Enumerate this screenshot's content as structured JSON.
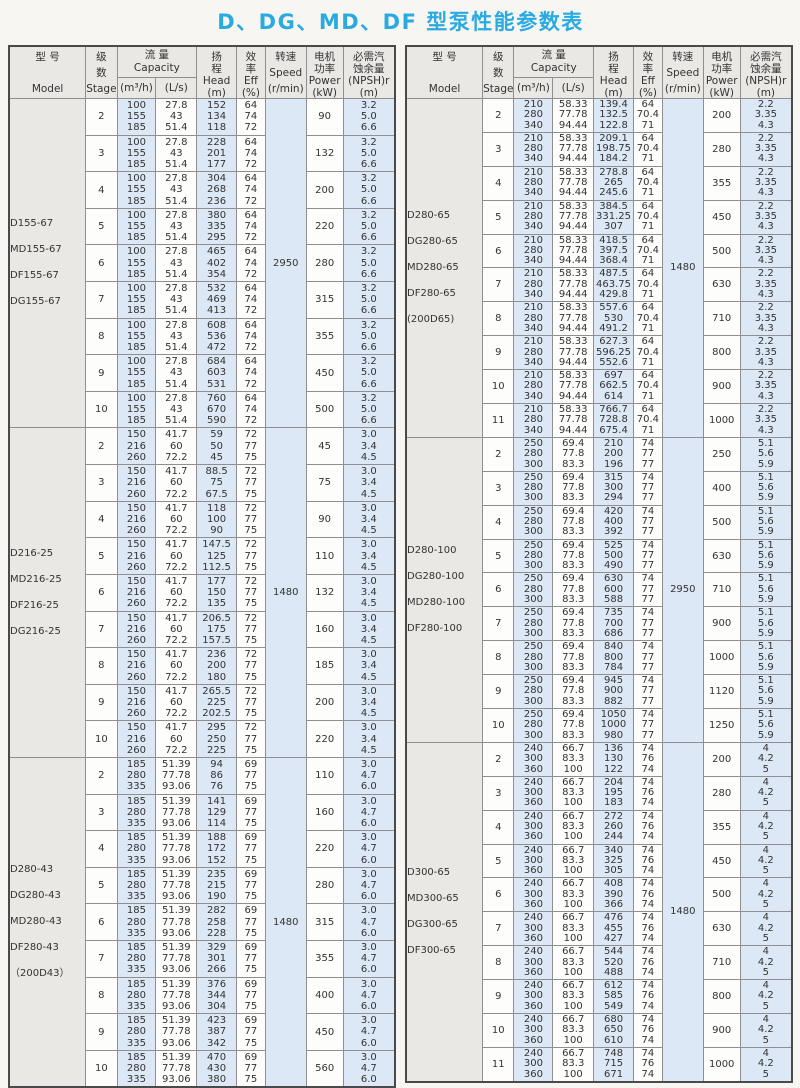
{
  "title": "D、DG、MD、DF 型泵性能参数表",
  "colors": {
    "title_blue": "#29abe2",
    "cell_blue": "#dce8f5",
    "cell_gray": "#eae8e5",
    "inner_border": "#8f8f8f",
    "outer_border": "#4a4a4a"
  },
  "columns": {
    "model": {
      "zh": [
        "型  号"
      ],
      "en": [
        "Model"
      ]
    },
    "stage": {
      "zh": [
        "级",
        "数"
      ],
      "en": [
        "Stage"
      ]
    },
    "capacity": {
      "zh": [
        "流  量"
      ],
      "en": [
        "Capacity"
      ]
    },
    "capacity_units": [
      "(m³/h)",
      "(L/s)"
    ],
    "head": {
      "zh": [
        "扬",
        "程"
      ],
      "en": [
        "Head",
        "(m)"
      ]
    },
    "eff": {
      "zh": [
        "效",
        "率"
      ],
      "en": [
        "Eff",
        "(%)"
      ]
    },
    "speed": {
      "zh": [
        "转速"
      ],
      "en": [
        "Speed",
        "(r/min)"
      ]
    },
    "power": {
      "zh": [
        "电机",
        "功率"
      ],
      "en": [
        "Power",
        "(kW)"
      ]
    },
    "npsh": {
      "zh": [
        "必需汽",
        "蚀余量"
      ],
      "en": [
        "(NPSH)r",
        "(m)"
      ]
    }
  },
  "tables": [
    {
      "id": "left",
      "sections": [
        {
          "models": [
            "D155-67",
            "MD155-67",
            "DF155-67",
            "DG155-67"
          ],
          "flow": [
            [
              "100",
              "27.8"
            ],
            [
              "155",
              "43"
            ],
            [
              "185",
              "51.4"
            ]
          ],
          "eff": [
            "64",
            "74",
            "72"
          ],
          "speed": "2950",
          "npsh": [
            "3.2",
            "5.0",
            "6.6"
          ],
          "stages": [
            {
              "stage": "2",
              "heads": [
                "152",
                "134",
                "118"
              ],
              "power": "90"
            },
            {
              "stage": "3",
              "heads": [
                "228",
                "201",
                "177"
              ],
              "power": "132"
            },
            {
              "stage": "4",
              "heads": [
                "304",
                "268",
                "236"
              ],
              "power": "200"
            },
            {
              "stage": "5",
              "heads": [
                "380",
                "335",
                "295"
              ],
              "power": "220"
            },
            {
              "stage": "6",
              "heads": [
                "465",
                "402",
                "354"
              ],
              "power": "280"
            },
            {
              "stage": "7",
              "heads": [
                "532",
                "469",
                "413"
              ],
              "power": "315"
            },
            {
              "stage": "8",
              "heads": [
                "608",
                "536",
                "472"
              ],
              "power": "355"
            },
            {
              "stage": "9",
              "heads": [
                "684",
                "603",
                "531"
              ],
              "power": "450"
            },
            {
              "stage": "10",
              "heads": [
                "760",
                "670",
                "590"
              ],
              "power": "500"
            }
          ]
        },
        {
          "models": [
            "D216-25",
            "MD216-25",
            "DF216-25",
            "DG216-25"
          ],
          "flow": [
            [
              "150",
              "41.7"
            ],
            [
              "216",
              "60"
            ],
            [
              "260",
              "72.2"
            ]
          ],
          "eff": [
            "72",
            "77",
            "75"
          ],
          "speed": "1480",
          "npsh": [
            "3.0",
            "3.4",
            "4.5"
          ],
          "stages": [
            {
              "stage": "2",
              "heads": [
                "59",
                "50",
                "45"
              ],
              "power": "45"
            },
            {
              "stage": "3",
              "heads": [
                "88.5",
                "75",
                "67.5"
              ],
              "power": "75"
            },
            {
              "stage": "4",
              "heads": [
                "118",
                "100",
                "90"
              ],
              "power": "90"
            },
            {
              "stage": "5",
              "heads": [
                "147.5",
                "125",
                "112.5"
              ],
              "power": "110"
            },
            {
              "stage": "6",
              "heads": [
                "177",
                "150",
                "135"
              ],
              "power": "132"
            },
            {
              "stage": "7",
              "heads": [
                "206.5",
                "175",
                "157.5"
              ],
              "power": "160"
            },
            {
              "stage": "8",
              "heads": [
                "236",
                "200",
                "180"
              ],
              "power": "185"
            },
            {
              "stage": "9",
              "heads": [
                "265.5",
                "225",
                "202.5"
              ],
              "power": "200"
            },
            {
              "stage": "10",
              "heads": [
                "295",
                "250",
                "225"
              ],
              "power": "220"
            }
          ]
        },
        {
          "models": [
            "D280-43",
            "DG280-43",
            "MD280-43",
            "DF280-43",
            "（200D43）"
          ],
          "flow": [
            [
              "185",
              "51.39"
            ],
            [
              "280",
              "77.78"
            ],
            [
              "335",
              "93.06"
            ]
          ],
          "eff": [
            "69",
            "77",
            "75"
          ],
          "speed": "1480",
          "npsh": [
            "3.0",
            "4.7",
            "6.0"
          ],
          "stages": [
            {
              "stage": "2",
              "heads": [
                "94",
                "86",
                "76"
              ],
              "power": "110"
            },
            {
              "stage": "3",
              "heads": [
                "141",
                "129",
                "114"
              ],
              "power": "160"
            },
            {
              "stage": "4",
              "heads": [
                "188",
                "172",
                "152"
              ],
              "power": "220"
            },
            {
              "stage": "5",
              "heads": [
                "235",
                "215",
                "190"
              ],
              "power": "280"
            },
            {
              "stage": "6",
              "heads": [
                "282",
                "258",
                "228"
              ],
              "power": "315"
            },
            {
              "stage": "7",
              "heads": [
                "329",
                "301",
                "266"
              ],
              "power": "355"
            },
            {
              "stage": "8",
              "heads": [
                "376",
                "344",
                "304"
              ],
              "power": "400"
            },
            {
              "stage": "9",
              "heads": [
                "423",
                "387",
                "342"
              ],
              "power": "450"
            },
            {
              "stage": "10",
              "heads": [
                "470",
                "430",
                "380"
              ],
              "power": "560"
            }
          ]
        }
      ]
    },
    {
      "id": "right",
      "sections": [
        {
          "models": [
            "D280-65",
            "DG280-65",
            "MD280-65",
            "DF280-65",
            "(200D65)"
          ],
          "flow": [
            [
              "210",
              "58.33"
            ],
            [
              "280",
              "77.78"
            ],
            [
              "340",
              "94.44"
            ]
          ],
          "eff": [
            "64",
            "70.4",
            "71"
          ],
          "speed": "1480",
          "npsh": [
            "2.2",
            "3.35",
            "4.3"
          ],
          "stages": [
            {
              "stage": "2",
              "heads": [
                "139.4",
                "132.5",
                "122.8"
              ],
              "power": "200"
            },
            {
              "stage": "3",
              "heads": [
                "209.1",
                "198.75",
                "184.2"
              ],
              "power": "280"
            },
            {
              "stage": "4",
              "heads": [
                "278.8",
                "265",
                "245.6"
              ],
              "power": "355"
            },
            {
              "stage": "5",
              "heads": [
                "384.5",
                "331.25",
                "307"
              ],
              "power": "450"
            },
            {
              "stage": "6",
              "heads": [
                "418.5",
                "397.5",
                "368.4"
              ],
              "power": "500"
            },
            {
              "stage": "7",
              "heads": [
                "487.5",
                "463.75",
                "429.8"
              ],
              "power": "630"
            },
            {
              "stage": "8",
              "heads": [
                "557.6",
                "530",
                "491.2"
              ],
              "power": "710"
            },
            {
              "stage": "9",
              "heads": [
                "627.3",
                "596.25",
                "552.6"
              ],
              "power": "800"
            },
            {
              "stage": "10",
              "heads": [
                "697",
                "662.5",
                "614"
              ],
              "power": "900"
            },
            {
              "stage": "11",
              "heads": [
                "766.7",
                "728.8",
                "675.4"
              ],
              "power": "1000"
            }
          ]
        },
        {
          "models": [
            "D280-100",
            "DG280-100",
            "MD280-100",
            "DF280-100"
          ],
          "flow": [
            [
              "250",
              "69.4"
            ],
            [
              "280",
              "77.8"
            ],
            [
              "300",
              "83.3"
            ]
          ],
          "eff": [
            "74",
            "77",
            "77"
          ],
          "speed": "2950",
          "npsh": [
            "5.1",
            "5.6",
            "5.9"
          ],
          "stages": [
            {
              "stage": "2",
              "heads": [
                "210",
                "200",
                "196"
              ],
              "power": "250"
            },
            {
              "stage": "3",
              "heads": [
                "315",
                "300",
                "294"
              ],
              "power": "400"
            },
            {
              "stage": "4",
              "heads": [
                "420",
                "400",
                "392"
              ],
              "power": "500"
            },
            {
              "stage": "5",
              "heads": [
                "525",
                "500",
                "490"
              ],
              "power": "630"
            },
            {
              "stage": "6",
              "heads": [
                "630",
                "600",
                "588"
              ],
              "power": "710"
            },
            {
              "stage": "7",
              "heads": [
                "735",
                "700",
                "686"
              ],
              "power": "900"
            },
            {
              "stage": "8",
              "heads": [
                "840",
                "800",
                "784"
              ],
              "power": "1000"
            },
            {
              "stage": "9",
              "heads": [
                "945",
                "900",
                "882"
              ],
              "power": "1120"
            },
            {
              "stage": "10",
              "heads": [
                "1050",
                "1000",
                "980"
              ],
              "power": "1250"
            }
          ]
        },
        {
          "models": [
            "D300-65",
            "MD300-65",
            "DG300-65",
            "DF300-65"
          ],
          "flow": [
            [
              "240",
              "66.7"
            ],
            [
              "300",
              "83.3"
            ],
            [
              "360",
              "100"
            ]
          ],
          "eff": [
            "74",
            "76",
            "74"
          ],
          "speed": "1480",
          "npsh": [
            "4",
            "4.2",
            "5"
          ],
          "stages": [
            {
              "stage": "2",
              "heads": [
                "136",
                "130",
                "122"
              ],
              "power": "200"
            },
            {
              "stage": "3",
              "heads": [
                "204",
                "195",
                "183"
              ],
              "power": "280"
            },
            {
              "stage": "4",
              "heads": [
                "272",
                "260",
                "244"
              ],
              "power": "355"
            },
            {
              "stage": "5",
              "heads": [
                "340",
                "325",
                "305"
              ],
              "power": "450"
            },
            {
              "stage": "6",
              "heads": [
                "408",
                "390",
                "366"
              ],
              "power": "500"
            },
            {
              "stage": "7",
              "heads": [
                "476",
                "455",
                "427"
              ],
              "power": "630"
            },
            {
              "stage": "8",
              "heads": [
                "544",
                "520",
                "488"
              ],
              "power": "710"
            },
            {
              "stage": "9",
              "heads": [
                "612",
                "585",
                "549"
              ],
              "power": "800"
            },
            {
              "stage": "10",
              "heads": [
                "680",
                "650",
                "610"
              ],
              "power": "900"
            },
            {
              "stage": "11",
              "heads": [
                "748",
                "715",
                "671"
              ],
              "power": "1000"
            }
          ]
        }
      ]
    }
  ]
}
